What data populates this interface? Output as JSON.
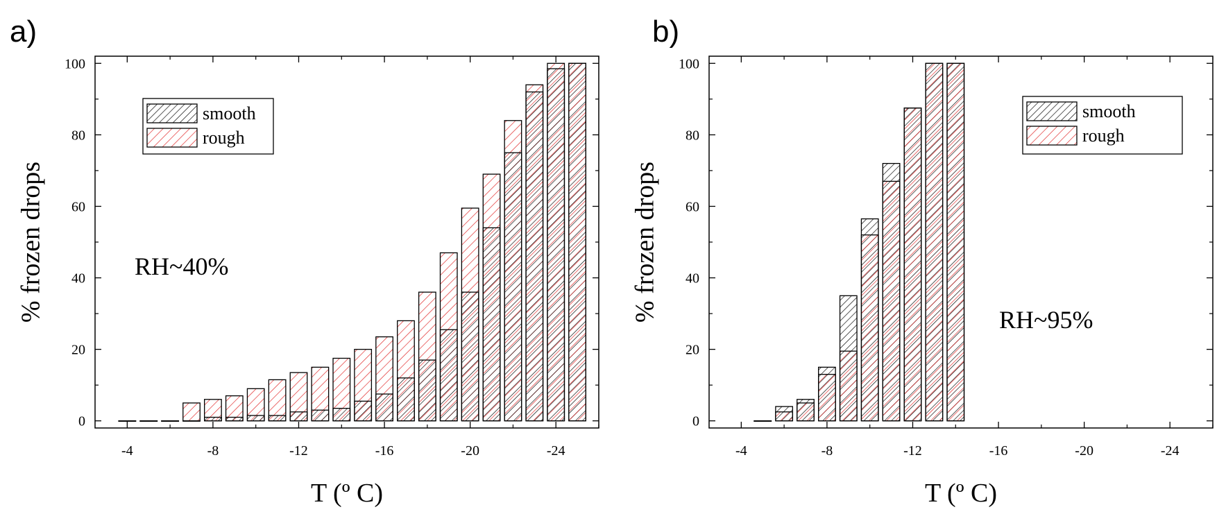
{
  "chart_data": [
    {
      "type": "bar",
      "panel_label": "a)",
      "annotation": "RH~40%",
      "xlabel": "T (º C)",
      "ylabel": "% frozen drops",
      "xlim": [
        -2.5,
        -26
      ],
      "ylim": [
        -2,
        102
      ],
      "xticks": [
        -4,
        -8,
        -12,
        -16,
        -20,
        -24
      ],
      "xtick_labels": [
        "-4",
        "-8",
        "-12",
        "-16",
        "-20",
        "-24"
      ],
      "yticks": [
        0,
        20,
        40,
        60,
        80,
        100
      ],
      "ytick_labels": [
        "0",
        "20",
        "40",
        "60",
        "80",
        "100"
      ],
      "legend_position": "top-left",
      "x": [
        -4,
        -5,
        -6,
        -7,
        -8,
        -9,
        -10,
        -11,
        -12,
        -13,
        -14,
        -15,
        -16,
        -17,
        -18,
        -19,
        -20,
        -21,
        -22,
        -23,
        -24,
        -25
      ],
      "series": [
        {
          "name": "smooth",
          "color": "#000000",
          "values": [
            0,
            0,
            0,
            0,
            1,
            1,
            1.5,
            1.5,
            2.5,
            3,
            3.5,
            5.5,
            7.5,
            12,
            17,
            25.5,
            36,
            54,
            75,
            92,
            98.5,
            100
          ]
        },
        {
          "name": "rough",
          "color": "#e02020",
          "values": [
            0,
            0,
            0,
            5,
            6,
            7,
            9,
            11.5,
            13.5,
            15,
            17.5,
            20,
            23.5,
            28,
            36,
            47,
            59.5,
            69,
            84,
            94,
            100,
            100
          ]
        }
      ]
    },
    {
      "type": "bar",
      "panel_label": "b)",
      "annotation": "RH~95%",
      "xlabel": "T (º C)",
      "ylabel": "% frozen drops",
      "xlim": [
        -2.5,
        -26
      ],
      "ylim": [
        -2,
        102
      ],
      "xticks": [
        -4,
        -8,
        -12,
        -16,
        -20,
        -24
      ],
      "xtick_labels": [
        "-4",
        "-8",
        "-12",
        "-16",
        "-20",
        "-24"
      ],
      "yticks": [
        0,
        20,
        40,
        60,
        80,
        100
      ],
      "ytick_labels": [
        "0",
        "20",
        "40",
        "60",
        "80",
        "100"
      ],
      "legend_position": "top-right",
      "x": [
        -5,
        -6,
        -7,
        -8,
        -9,
        -10,
        -11,
        -12,
        -13,
        -14
      ],
      "series": [
        {
          "name": "smooth",
          "color": "#000000",
          "values": [
            0,
            4,
            6,
            15,
            35,
            56.5,
            72,
            87.5,
            100,
            100
          ]
        },
        {
          "name": "rough",
          "color": "#e02020",
          "values": [
            0,
            2.5,
            5,
            13,
            19.5,
            52,
            67,
            87.5,
            100,
            100
          ]
        }
      ]
    }
  ]
}
